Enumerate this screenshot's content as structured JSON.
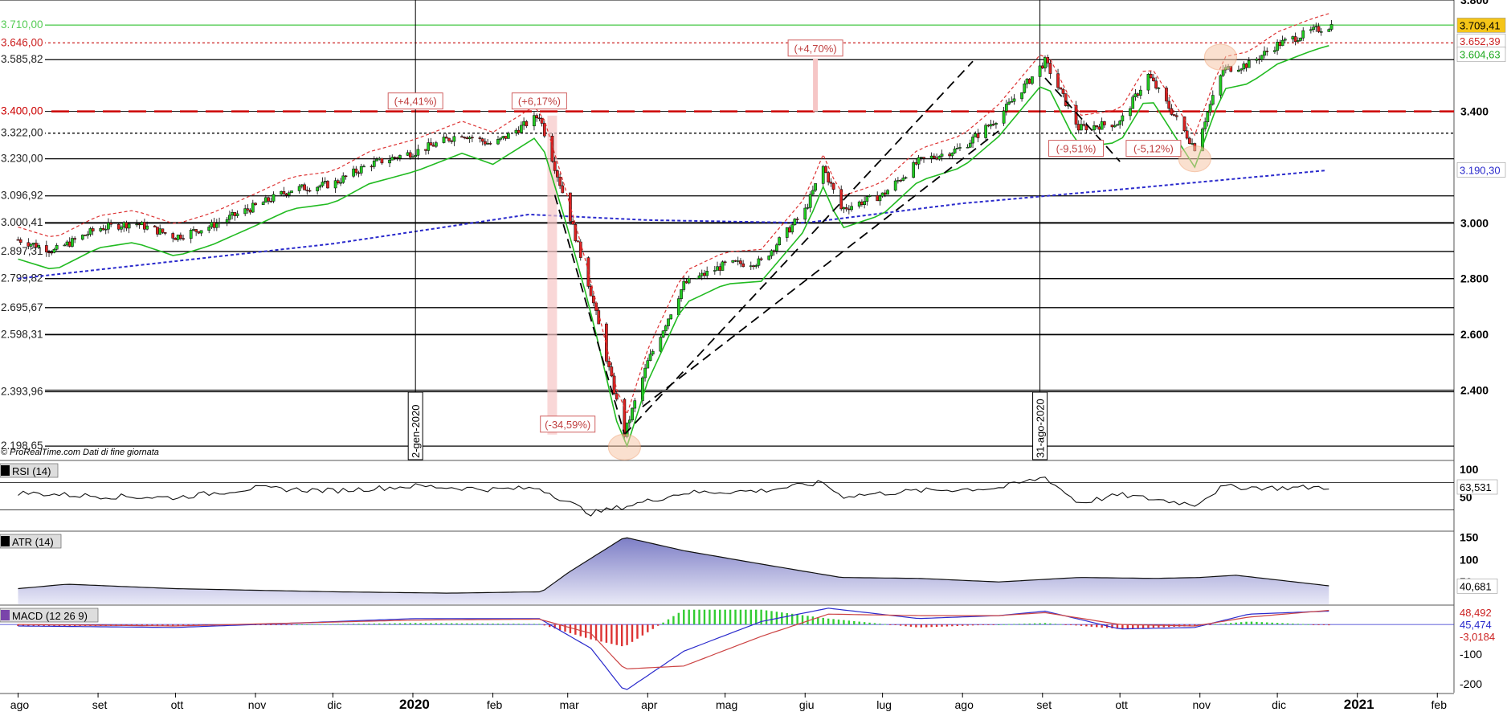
{
  "chart_data": [
    {
      "panel": "price",
      "type": "candlestick",
      "title": "",
      "source_note": "© ProRealTime.com  Dati di fine giornata",
      "ylim": [
        2150,
        3800
      ],
      "right_axis_ticks": [
        "3.800",
        "3.400",
        "3.000",
        "2.800",
        "2.600",
        "2.400"
      ],
      "right_axis_ticks_values": [
        3800,
        3400,
        3000,
        2800,
        2600,
        2400
      ],
      "right_axis_tags": [
        {
          "label": "3.709,41",
          "value": 3709.41,
          "color": "#f5c518",
          "text_color": "#000000"
        },
        {
          "label": "3.652,39",
          "value": 3652.39,
          "color": "#ffffff",
          "text_color": "#cc2222"
        },
        {
          "label": "3.604,63",
          "value": 3604.63,
          "color": "#ffffff",
          "text_color": "#22aa22"
        },
        {
          "label": "3.190,30",
          "value": 3190.3,
          "color": "#ffffff",
          "text_color": "#2a2acc"
        }
      ],
      "left_levels": [
        {
          "label": "3.710,00",
          "value": 3710.0,
          "color": "#55cc55"
        },
        {
          "label": "3.646,00",
          "value": 3646.0,
          "color": "#cc2222",
          "style": "dotted"
        },
        {
          "label": "3.585,82",
          "value": 3585.82,
          "color": "#000000"
        },
        {
          "label": "3.400,00",
          "value": 3400.0,
          "color": "#cc0000",
          "style": "dashed"
        },
        {
          "label": "3.322,00",
          "value": 3322.0,
          "color": "#000000",
          "style": "dotted"
        },
        {
          "label": "3.230,00",
          "value": 3230.0,
          "color": "#000000"
        },
        {
          "label": "3.096,92",
          "value": 3096.92,
          "color": "#000000"
        },
        {
          "label": "3.000,41",
          "value": 3000.41,
          "color": "#000000"
        },
        {
          "label": "2.897,31",
          "value": 2897.31,
          "color": "#000000"
        },
        {
          "label": "2.799,82",
          "value": 2799.82,
          "color": "#000000"
        },
        {
          "label": "2.695,67",
          "value": 2695.67,
          "color": "#000000"
        },
        {
          "label": "2.598,31",
          "value": 2598.31,
          "color": "#000000"
        },
        {
          "label": "2.393,96",
          "value": 2393.96,
          "color": "#000000"
        },
        {
          "label": "2.198,65",
          "value": 2198.65,
          "color": "#000000"
        }
      ],
      "vertical_markers": [
        {
          "label": "2-gen-2020",
          "date": "2020-01-02"
        },
        {
          "label": "31-ago-2020",
          "date": "2020-08-31"
        }
      ],
      "annotations": [
        {
          "label": "(+4,41%)",
          "date": "2020-01-02",
          "value": 3400
        },
        {
          "label": "(+6,17%)",
          "date": "2020-02-19",
          "value": 3400
        },
        {
          "label": "(+4,70%)",
          "date": "2020-06-05",
          "value": 3590
        },
        {
          "label": "(-34,59%)",
          "date": "2020-03-01",
          "value": 2240
        },
        {
          "label": "(-9,51%)",
          "date": "2020-09-14",
          "value": 3230
        },
        {
          "label": "(-5,12%)",
          "date": "2020-10-14",
          "value": 3230
        }
      ],
      "close_series_approx": {
        "dates": [
          "2019-08-01",
          "2019-08-15",
          "2019-09-01",
          "2019-09-15",
          "2019-10-01",
          "2019-10-15",
          "2019-11-01",
          "2019-11-15",
          "2019-12-01",
          "2019-12-15",
          "2020-01-02",
          "2020-01-20",
          "2020-02-01",
          "2020-02-19",
          "2020-03-01",
          "2020-03-10",
          "2020-03-23",
          "2020-04-01",
          "2020-04-15",
          "2020-05-01",
          "2020-05-15",
          "2020-06-01",
          "2020-06-08",
          "2020-06-15",
          "2020-07-01",
          "2020-07-15",
          "2020-08-01",
          "2020-08-15",
          "2020-09-02",
          "2020-09-15",
          "2020-10-01",
          "2020-10-12",
          "2020-10-30",
          "2020-11-10",
          "2020-11-20",
          "2020-12-01",
          "2020-12-15",
          "2020-12-22"
        ],
        "close": [
          2940,
          2900,
          2980,
          3000,
          2950,
          2990,
          3060,
          3120,
          3140,
          3210,
          3255,
          3320,
          3280,
          3385,
          3050,
          2750,
          2240,
          2500,
          2780,
          2850,
          2860,
          3045,
          3200,
          3050,
          3100,
          3220,
          3270,
          3380,
          3580,
          3340,
          3360,
          3530,
          3270,
          3550,
          3570,
          3640,
          3690,
          3709
        ]
      },
      "moving_average_200_approx": {
        "dates": [
          "2019-08-01",
          "2019-12-01",
          "2020-02-15",
          "2020-04-01",
          "2020-06-01",
          "2020-08-01",
          "2020-10-01",
          "2020-12-22"
        ],
        "values": [
          2800,
          2925,
          3030,
          3010,
          3000,
          3070,
          3120,
          3190
        ]
      }
    },
    {
      "panel": "rsi",
      "type": "line",
      "label": "RSI (14)",
      "right_axis_ticks": [
        "100",
        "50"
      ],
      "last_value_label": "63,531",
      "ylim": [
        0,
        100
      ],
      "levels": [
        70,
        30
      ],
      "series": {
        "dates": [
          "2019-08-01",
          "2019-09-01",
          "2019-10-01",
          "2019-11-01",
          "2019-12-01",
          "2020-01-02",
          "2020-02-01",
          "2020-02-19",
          "2020-03-10",
          "2020-03-23",
          "2020-04-15",
          "2020-05-15",
          "2020-06-08",
          "2020-06-15",
          "2020-07-15",
          "2020-08-15",
          "2020-09-02",
          "2020-09-15",
          "2020-10-01",
          "2020-10-30",
          "2020-11-10",
          "2020-12-01",
          "2020-12-22"
        ],
        "values": [
          55,
          50,
          48,
          62,
          58,
          65,
          60,
          62,
          25,
          35,
          55,
          58,
          70,
          50,
          58,
          62,
          78,
          40,
          52,
          38,
          64,
          62,
          63.531
        ]
      }
    },
    {
      "panel": "atr",
      "type": "area",
      "label": "ATR (14)",
      "right_axis_ticks": [
        "150",
        "100",
        "50"
      ],
      "last_value_label": "40,681",
      "ylim": [
        0,
        160
      ],
      "series": {
        "dates": [
          "2019-08-01",
          "2019-08-20",
          "2019-10-01",
          "2019-12-01",
          "2020-01-15",
          "2020-02-20",
          "2020-03-01",
          "2020-03-23",
          "2020-04-15",
          "2020-05-15",
          "2020-06-15",
          "2020-07-15",
          "2020-08-15",
          "2020-09-15",
          "2020-10-15",
          "2020-11-01",
          "2020-11-15",
          "2020-12-22"
        ],
        "values": [
          35,
          45,
          35,
          28,
          25,
          28,
          70,
          150,
          120,
          90,
          60,
          58,
          50,
          60,
          58,
          60,
          65,
          40.681
        ]
      }
    },
    {
      "panel": "macd",
      "type": "line",
      "label": "MACD (12 26 9)",
      "right_axis_ticks": [
        "-100",
        "-200"
      ],
      "right_axis_tags": [
        {
          "label": "48,492",
          "color": "#cc2222"
        },
        {
          "label": "45,474",
          "color": "#2a2acc"
        },
        {
          "label": "-3,0184",
          "color": "#cc2222"
        }
      ],
      "ylim": [
        -230,
        60
      ],
      "series": [
        {
          "name": "MACD",
          "color": "#2a2acc",
          "dates": [
            "2019-08-01",
            "2019-10-01",
            "2020-01-02",
            "2020-02-19",
            "2020-03-10",
            "2020-03-23",
            "2020-04-15",
            "2020-05-15",
            "2020-06-10",
            "2020-07-15",
            "2020-08-15",
            "2020-09-02",
            "2020-10-01",
            "2020-10-30",
            "2020-11-20",
            "2020-12-22"
          ],
          "values": [
            -5,
            -10,
            20,
            20,
            -80,
            -225,
            -90,
            10,
            55,
            20,
            30,
            45,
            -15,
            -10,
            35,
            45.474
          ]
        },
        {
          "name": "Signal",
          "color": "#cc4444",
          "dates": [
            "2019-08-01",
            "2019-10-01",
            "2020-01-02",
            "2020-02-19",
            "2020-03-10",
            "2020-03-23",
            "2020-04-15",
            "2020-05-15",
            "2020-06-10",
            "2020-07-15",
            "2020-08-15",
            "2020-09-02",
            "2020-10-01",
            "2020-10-30",
            "2020-11-20",
            "2020-12-22"
          ],
          "values": [
            0,
            -5,
            15,
            18,
            -30,
            -150,
            -140,
            -40,
            35,
            30,
            30,
            40,
            0,
            -5,
            25,
            48.492
          ]
        }
      ]
    }
  ],
  "x_axis": {
    "start": "2019-07-25",
    "end": "2021-02-28",
    "ticks": [
      {
        "label": "ago",
        "date": "2019-08-01",
        "bold": false
      },
      {
        "label": "set",
        "date": "2019-09-01",
        "bold": false
      },
      {
        "label": "ott",
        "date": "2019-10-01",
        "bold": false
      },
      {
        "label": "nov",
        "date": "2019-11-01",
        "bold": false
      },
      {
        "label": "dic",
        "date": "2019-12-01",
        "bold": false
      },
      {
        "label": "2020",
        "date": "2020-01-01",
        "bold": true
      },
      {
        "label": "feb",
        "date": "2020-02-01",
        "bold": false
      },
      {
        "label": "mar",
        "date": "2020-03-01",
        "bold": false
      },
      {
        "label": "apr",
        "date": "2020-04-01",
        "bold": false
      },
      {
        "label": "mag",
        "date": "2020-05-01",
        "bold": false
      },
      {
        "label": "giu",
        "date": "2020-06-01",
        "bold": false
      },
      {
        "label": "lug",
        "date": "2020-07-01",
        "bold": false
      },
      {
        "label": "ago",
        "date": "2020-08-01",
        "bold": false
      },
      {
        "label": "set",
        "date": "2020-09-01",
        "bold": false
      },
      {
        "label": "ott",
        "date": "2020-10-01",
        "bold": false
      },
      {
        "label": "nov",
        "date": "2020-11-01",
        "bold": false
      },
      {
        "label": "dic",
        "date": "2020-12-01",
        "bold": false
      },
      {
        "label": "2021",
        "date": "2021-01-01",
        "bold": true
      },
      {
        "label": "feb",
        "date": "2021-02-01",
        "bold": false
      }
    ]
  },
  "colors": {
    "bull_candle": "#22cc22",
    "bear_candle": "#dd2222",
    "ma200": "#2a2acc",
    "trail_red": "#dd5555",
    "trail_green": "#22bb22",
    "highlight": "#f6c6c6",
    "circle": "#f0a070"
  }
}
